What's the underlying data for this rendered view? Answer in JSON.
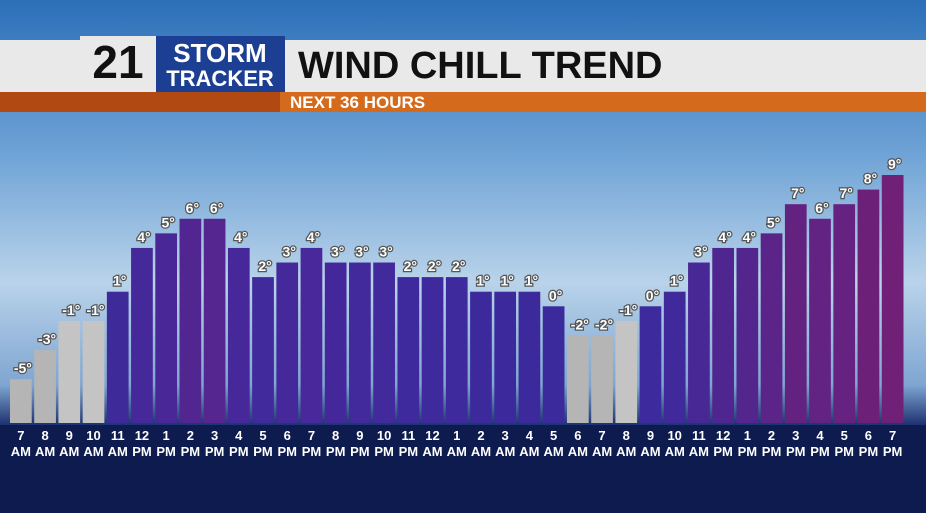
{
  "logo": {
    "number": "21",
    "line1": "STORM",
    "line2": "TRACKER"
  },
  "chart_data": {
    "type": "bar",
    "title": "WIND CHILL TREND",
    "subtitle": "NEXT 36 HOURS",
    "categories": [
      "7\nAM",
      "8\nAM",
      "9\nAM",
      "10\nAM",
      "11\nAM",
      "12\nPM",
      "1\nPM",
      "2\nPM",
      "3\nPM",
      "4\nPM",
      "5\nPM",
      "6\nPM",
      "7\nPM",
      "8\nPM",
      "9\nPM",
      "10\nPM",
      "11\nPM",
      "12\nAM",
      "1\nAM",
      "2\nAM",
      "3\nAM",
      "4\nAM",
      "5\nAM",
      "6\nAM",
      "7\nAM",
      "8\nAM",
      "9\nAM",
      "10\nAM",
      "11\nAM",
      "12\nPM",
      "1\nPM",
      "2\nPM",
      "3\nPM",
      "4\nPM",
      "5\nPM",
      "6\nPM",
      "7\nPM"
    ],
    "values": [
      -5,
      -3,
      -1,
      -1,
      1,
      4,
      5,
      6,
      6,
      4,
      2,
      3,
      4,
      3,
      3,
      3,
      2,
      2,
      2,
      1,
      1,
      1,
      0,
      -2,
      -2,
      -1,
      0,
      1,
      3,
      4,
      4,
      5,
      7,
      6,
      7,
      8,
      9
    ],
    "value_labels": [
      "-5°",
      "-3°",
      "-1°",
      "-1°",
      "1°",
      "4°",
      "5°",
      "6°",
      "6°",
      "4°",
      "2°",
      "3°",
      "4°",
      "3°",
      "3°",
      "3°",
      "2°",
      "2°",
      "2°",
      "1°",
      "1°",
      "1°",
      "0°",
      "-2°",
      "-2°",
      "-1°",
      "0°",
      "1°",
      "3°",
      "4°",
      "4°",
      "5°",
      "7°",
      "6°",
      "7°",
      "8°",
      "9°"
    ],
    "colors": [
      "#b5b5b5",
      "#b5b5b5",
      "#c4c4c4",
      "#c4c4c4",
      "#3f2a9a",
      "#45289a",
      "#4a2796",
      "#522690",
      "#552590",
      "#46289a",
      "#402a9c",
      "#45289a",
      "#48289a",
      "#44289b",
      "#42299c",
      "#42299c",
      "#3f2a9d",
      "#3e2a9d",
      "#3e2a9d",
      "#3c2a9d",
      "#3c2a9d",
      "#3c2a9d",
      "#3a2a9c",
      "#b5b5b5",
      "#b5b5b5",
      "#c4c4c4",
      "#3d2a9c",
      "#402a9b",
      "#482894",
      "#4f2690",
      "#52268d",
      "#5a2488",
      "#642280",
      "#622382",
      "#662280",
      "#6c2078",
      "#702076"
    ]
  }
}
